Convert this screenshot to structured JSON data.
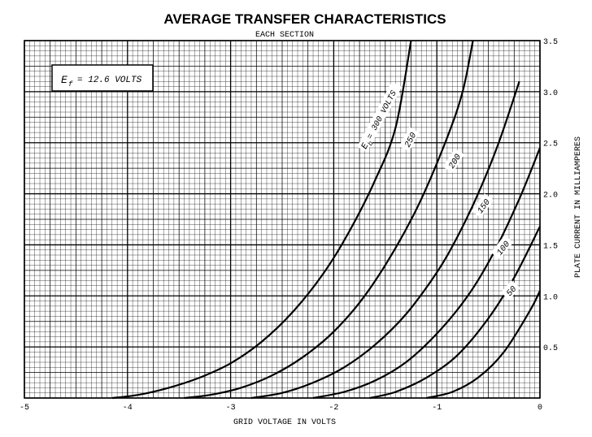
{
  "chart_data": {
    "type": "line",
    "title": "AVERAGE TRANSFER CHARACTERISTICS",
    "subtitle": "EACH SECTION",
    "xlabel": "GRID VOLTAGE IN VOLTS",
    "ylabel": "PLATE CURRENT IN MILLIAMPERES",
    "xlim": [
      -5,
      0
    ],
    "ylim": [
      0,
      3.5
    ],
    "xticks": [
      "-5",
      "-4",
      "-3",
      "-2",
      "-1",
      "0"
    ],
    "yticks": [
      "0.5",
      "1.0",
      "1.5",
      "2.0",
      "2.5",
      "3.0",
      "3.5"
    ],
    "grid": true,
    "annotation": {
      "symbol": "E",
      "subscript": "f",
      "text": "= 12.6 VOLTS"
    },
    "curve_label_prefix": {
      "symbol": "E",
      "subscript": "b"
    },
    "series": [
      {
        "name": "300 VOLTS",
        "x": [
          -4.15,
          -3.9,
          -3.6,
          -3.3,
          -3.0,
          -2.7,
          -2.4,
          -2.1,
          -1.85,
          -1.6,
          -1.4,
          -1.25
        ],
        "y": [
          0.0,
          0.03,
          0.1,
          0.2,
          0.34,
          0.55,
          0.84,
          1.22,
          1.63,
          2.13,
          2.65,
          3.5
        ]
      },
      {
        "name": "250",
        "x": [
          -3.45,
          -3.2,
          -2.9,
          -2.6,
          -2.3,
          -2.0,
          -1.7,
          -1.4,
          -1.15,
          -0.9,
          -0.75,
          -0.65
        ],
        "y": [
          0.0,
          0.03,
          0.1,
          0.22,
          0.4,
          0.65,
          1.0,
          1.47,
          1.95,
          2.55,
          3.0,
          3.5
        ]
      },
      {
        "name": "200",
        "x": [
          -2.8,
          -2.5,
          -2.2,
          -1.9,
          -1.6,
          -1.3,
          -1.0,
          -0.8,
          -0.6,
          -0.4,
          -0.2
        ],
        "y": [
          0.0,
          0.05,
          0.15,
          0.3,
          0.52,
          0.82,
          1.23,
          1.58,
          2.0,
          2.5,
          3.1
        ]
      },
      {
        "name": "150",
        "x": [
          -2.2,
          -1.9,
          -1.6,
          -1.3,
          -1.0,
          -0.7,
          -0.45,
          -0.2,
          0.0
        ],
        "y": [
          0.0,
          0.06,
          0.17,
          0.35,
          0.63,
          1.0,
          1.42,
          1.95,
          2.45
        ]
      },
      {
        "name": "100",
        "x": [
          -1.65,
          -1.4,
          -1.1,
          -0.8,
          -0.5,
          -0.25,
          0.0
        ],
        "y": [
          0.0,
          0.06,
          0.2,
          0.42,
          0.78,
          1.18,
          1.68
        ]
      },
      {
        "name": "50",
        "x": [
          -1.1,
          -0.85,
          -0.6,
          -0.35,
          -0.1,
          0.0
        ],
        "y": [
          0.0,
          0.06,
          0.2,
          0.45,
          0.85,
          1.05
        ]
      }
    ],
    "colors": {
      "background": "#ffffff",
      "grid": "#000000",
      "curves": "#000000"
    }
  }
}
